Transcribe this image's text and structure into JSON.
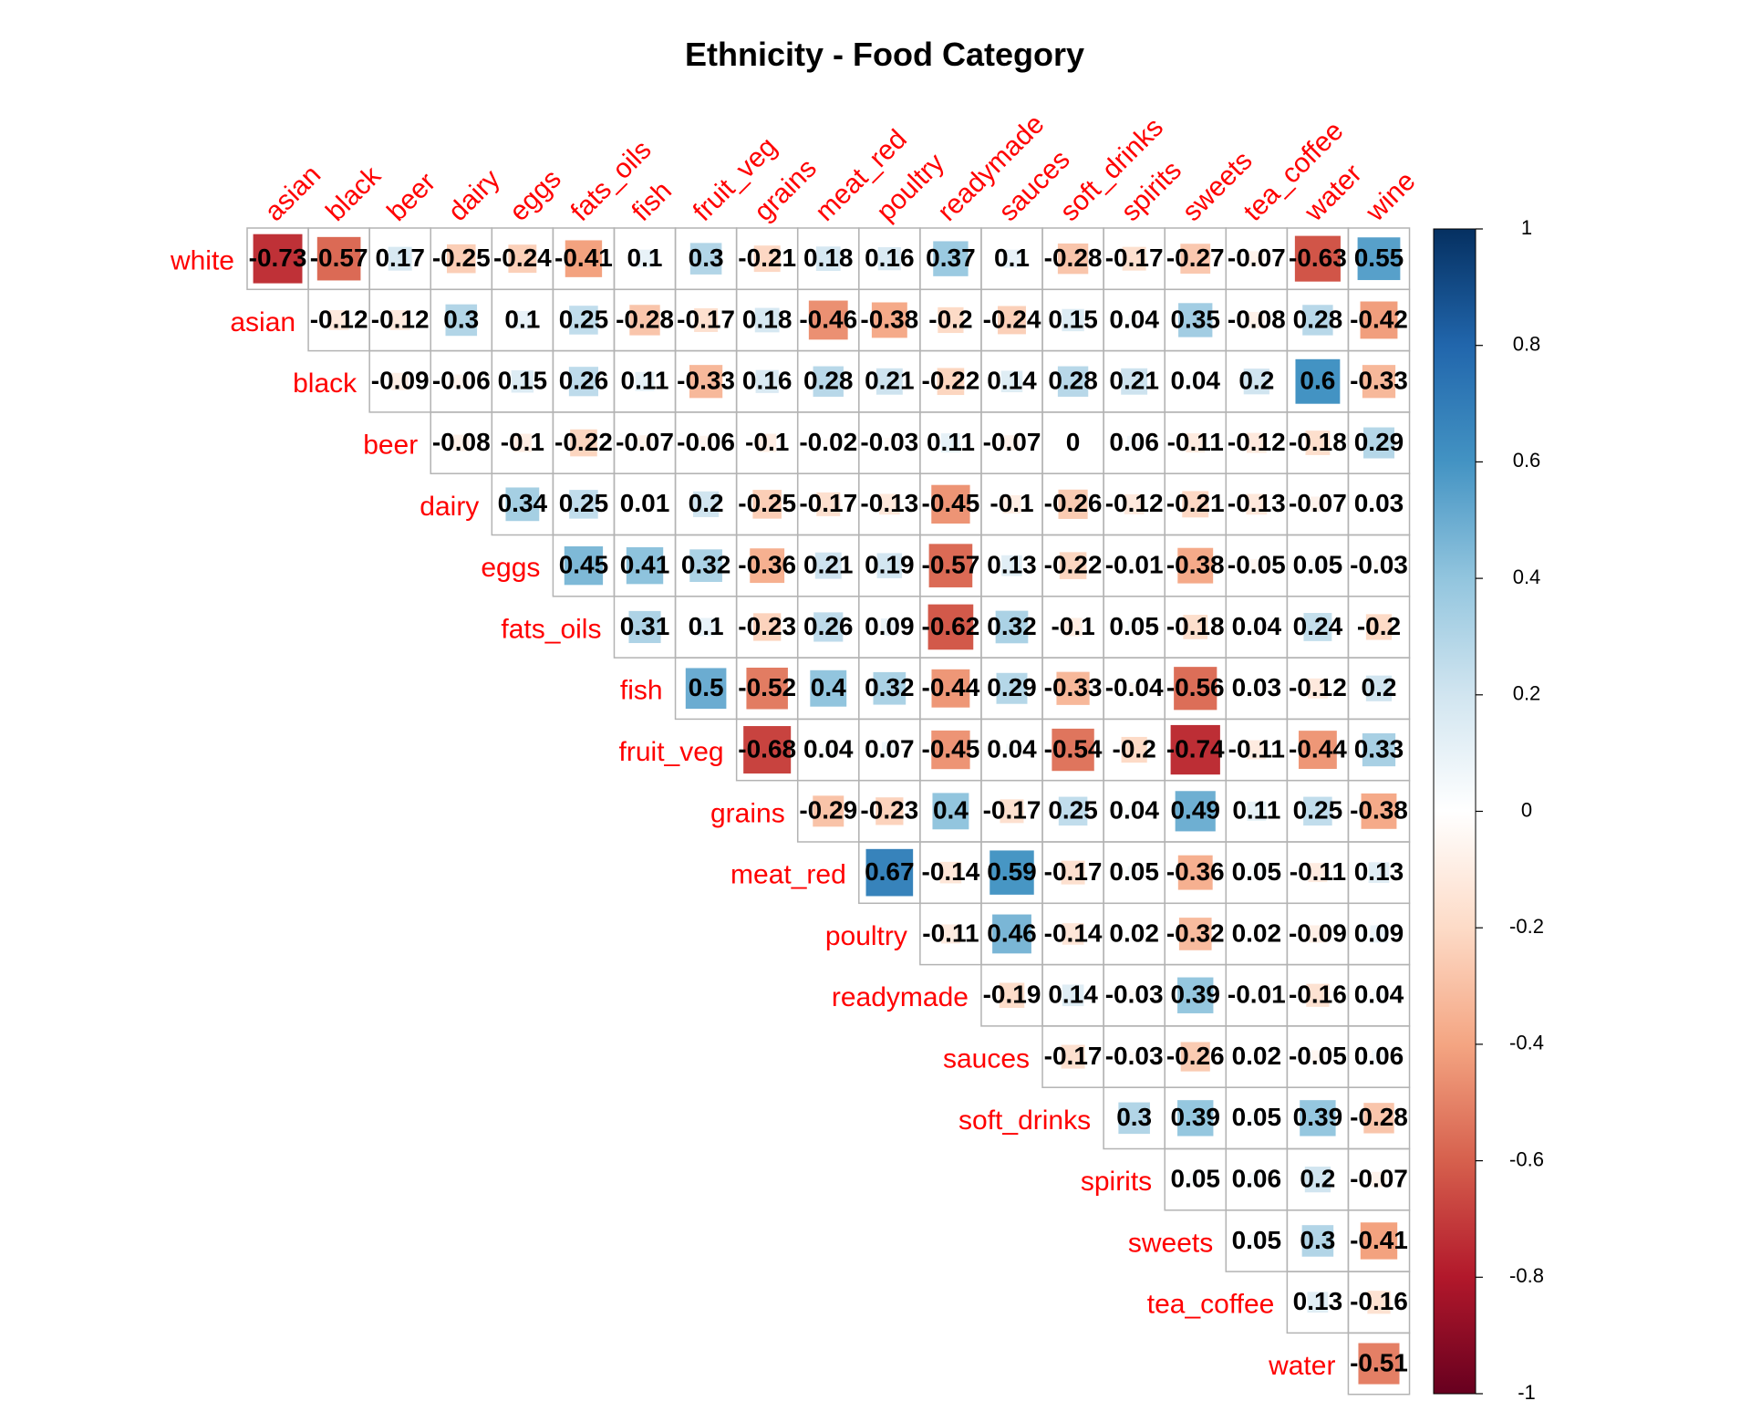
{
  "chart_data": {
    "type": "heatmap",
    "title": "Ethnicity - Food Category",
    "columns": [
      "asian",
      "black",
      "beer",
      "dairy",
      "eggs",
      "fats_oils",
      "fish",
      "fruit_veg",
      "grains",
      "meat_red",
      "poultry",
      "readymade",
      "sauces",
      "soft_drinks",
      "spirits",
      "sweets",
      "tea_coffee",
      "water",
      "wine"
    ],
    "rows": [
      {
        "label": "white",
        "values": [
          -0.73,
          -0.57,
          0.17,
          -0.25,
          -0.24,
          -0.41,
          0.1,
          0.3,
          -0.21,
          0.18,
          0.16,
          0.37,
          0.1,
          -0.28,
          -0.17,
          -0.27,
          -0.07,
          -0.63,
          0.55
        ]
      },
      {
        "label": "asian",
        "values": [
          -0.12,
          -0.12,
          0.3,
          0.1,
          0.25,
          -0.28,
          -0.17,
          0.18,
          -0.46,
          -0.38,
          -0.2,
          -0.24,
          0.15,
          0.04,
          0.35,
          -0.08,
          0.28,
          -0.42
        ]
      },
      {
        "label": "black",
        "values": [
          -0.09,
          -0.06,
          0.15,
          0.26,
          0.11,
          -0.33,
          0.16,
          0.28,
          0.21,
          -0.22,
          0.14,
          0.28,
          0.21,
          0.04,
          0.2,
          0.6,
          -0.33
        ]
      },
      {
        "label": "beer",
        "values": [
          -0.08,
          -0.1,
          -0.22,
          -0.07,
          -0.06,
          -0.1,
          -0.02,
          -0.03,
          0.11,
          -0.07,
          0,
          0.06,
          -0.11,
          -0.12,
          -0.18,
          0.29
        ]
      },
      {
        "label": "dairy",
        "values": [
          0.34,
          0.25,
          0.01,
          0.2,
          -0.25,
          -0.17,
          -0.13,
          -0.45,
          -0.1,
          -0.26,
          -0.12,
          -0.21,
          -0.13,
          -0.07,
          0.03
        ]
      },
      {
        "label": "eggs",
        "values": [
          0.45,
          0.41,
          0.32,
          -0.36,
          0.21,
          0.19,
          -0.57,
          0.13,
          -0.22,
          -0.01,
          -0.38,
          -0.05,
          0.05,
          -0.03
        ]
      },
      {
        "label": "fats_oils",
        "values": [
          0.31,
          0.1,
          -0.23,
          0.26,
          0.09,
          -0.62,
          0.32,
          -0.1,
          0.05,
          -0.18,
          0.04,
          0.24,
          -0.2
        ]
      },
      {
        "label": "fish",
        "values": [
          0.5,
          -0.52,
          0.4,
          0.32,
          -0.44,
          0.29,
          -0.33,
          -0.04,
          -0.56,
          0.03,
          -0.12,
          0.2
        ]
      },
      {
        "label": "fruit_veg",
        "values": [
          -0.68,
          0.04,
          0.07,
          -0.45,
          0.04,
          -0.54,
          -0.2,
          -0.74,
          -0.11,
          -0.44,
          0.33
        ]
      },
      {
        "label": "grains",
        "values": [
          -0.29,
          -0.23,
          0.4,
          -0.17,
          0.25,
          0.04,
          0.49,
          0.11,
          0.25,
          -0.38
        ]
      },
      {
        "label": "meat_red",
        "values": [
          0.67,
          -0.14,
          0.59,
          -0.17,
          0.05,
          -0.36,
          0.05,
          -0.11,
          0.13
        ]
      },
      {
        "label": "poultry",
        "values": [
          -0.11,
          0.46,
          -0.14,
          0.02,
          -0.32,
          0.02,
          -0.09,
          0.09
        ]
      },
      {
        "label": "readymade",
        "values": [
          -0.19,
          0.14,
          -0.03,
          0.39,
          -0.01,
          -0.16,
          0.04
        ]
      },
      {
        "label": "sauces",
        "values": [
          -0.17,
          -0.03,
          -0.26,
          0.02,
          -0.05,
          0.06
        ]
      },
      {
        "label": "soft_drinks",
        "values": [
          0.3,
          0.39,
          0.05,
          0.39,
          -0.28
        ]
      },
      {
        "label": "spirits",
        "values": [
          0.05,
          0.06,
          0.2,
          -0.07
        ]
      },
      {
        "label": "sweets",
        "values": [
          0.05,
          0.3,
          -0.41
        ]
      },
      {
        "label": "tea_coffee",
        "values": [
          0.13,
          -0.16
        ]
      },
      {
        "label": "water",
        "values": [
          -0.51
        ]
      }
    ],
    "colorbar": {
      "range": [
        -1,
        1
      ],
      "ticks": [
        "1",
        "0.8",
        "0.6",
        "0.4",
        "0.2",
        "0",
        "-0.2",
        "-0.4",
        "-0.6",
        "-0.8",
        "-1"
      ]
    },
    "colors": {
      "label": "#ff0000",
      "grid": "#b3b3b3",
      "scale": [
        "#67001f",
        "#b2182b",
        "#d6604d",
        "#f4a582",
        "#fddbc7",
        "#ffffff",
        "#d1e5f0",
        "#92c5de",
        "#4393c3",
        "#2166ac",
        "#053061"
      ]
    }
  }
}
